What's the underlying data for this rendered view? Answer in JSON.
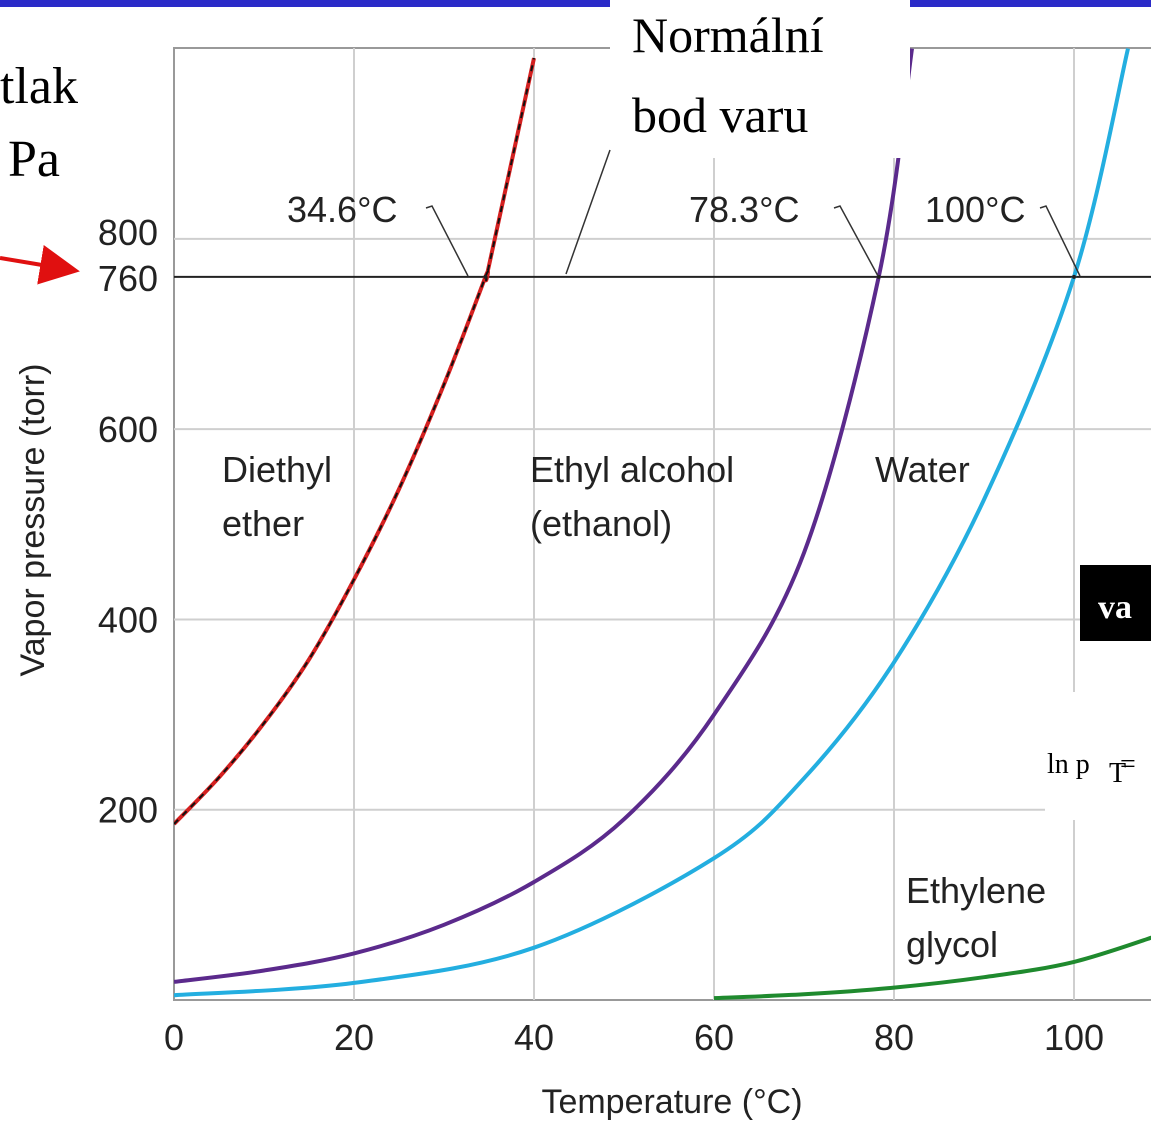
{
  "slide": {
    "left_text": {
      "line1": "tlak",
      "line2": "Pa",
      "y_marker": "800\n760"
    },
    "boiling_callout": {
      "line1": "Normální",
      "line2": "bod varu"
    },
    "side_box_text": "va",
    "equation_fragment": "ln p",
    "equation_sub": "T",
    "equation_eq": " ="
  },
  "colors": {
    "frame_blue": "#2b2bc8",
    "ether": "#d42020",
    "ethanol": "#5b2a8c",
    "water": "#23aee0",
    "glycol": "#1f8a2e",
    "arrow": "#e01010",
    "grid": "#cfcfcf"
  },
  "chart_data": {
    "type": "line",
    "title": "",
    "xlabel": "Temperature (°C)",
    "ylabel": "Vapor pressure (torr)",
    "xlim": [
      0,
      110
    ],
    "ylim": [
      0,
      1000
    ],
    "x_ticks": [
      0,
      20,
      40,
      60,
      80,
      100
    ],
    "y_ticks": [
      200,
      400,
      600,
      760,
      800
    ],
    "y_tick_labels": [
      "200",
      "400",
      "600",
      "760",
      "800"
    ],
    "grid": true,
    "reference_line": {
      "y": 760
    },
    "series": [
      {
        "name": "Diethyl ether",
        "label_lines": [
          "Diethyl",
          "ether"
        ],
        "boiling_point_label": "34.6°C",
        "boiling_point": 34.6,
        "x": [
          0,
          5,
          10,
          15,
          20,
          25,
          30,
          34.6,
          35,
          40
        ],
        "y": [
          185,
          234,
          291,
          358,
          442,
          537,
          647,
          760,
          772,
          990
        ]
      },
      {
        "name": "Ethyl alcohol",
        "label_lines": [
          "Ethyl alcohol",
          "(ethanol)"
        ],
        "boiling_point_label": "78.3°C",
        "boiling_point": 78.3,
        "x": [
          0,
          10,
          20,
          30,
          40,
          50,
          60,
          70,
          78.3,
          82
        ],
        "y": [
          19,
          31,
          49,
          79,
          124,
          190,
          300,
          470,
          760,
          1000
        ]
      },
      {
        "name": "Water",
        "label_lines": [
          "Water"
        ],
        "boiling_point_label": "100°C",
        "boiling_point": 100,
        "x": [
          0,
          20,
          40,
          60,
          70,
          80,
          90,
          100,
          106
        ],
        "y": [
          5,
          18,
          55,
          149,
          233,
          355,
          526,
          760,
          1000
        ]
      },
      {
        "name": "Ethylene glycol",
        "label_lines": [
          "Ethylene",
          "glycol"
        ],
        "x": [
          60,
          70,
          80,
          90,
          100,
          110
        ],
        "y": [
          2,
          6,
          13,
          24,
          40,
          70
        ]
      }
    ]
  }
}
